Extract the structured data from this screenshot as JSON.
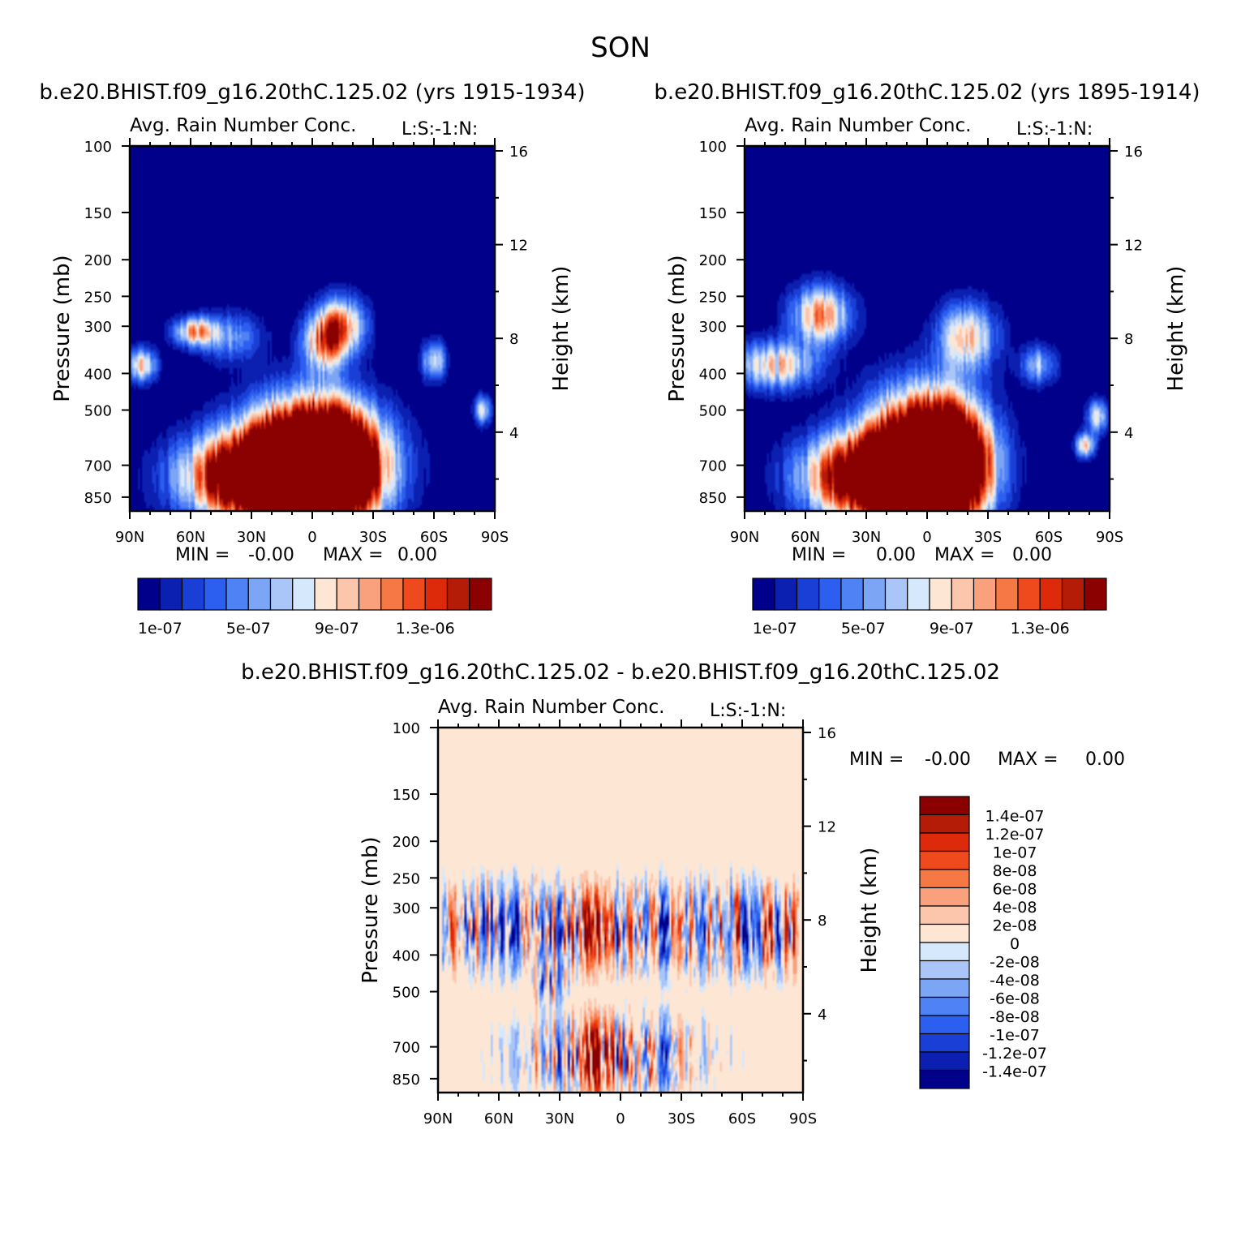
{
  "figure": {
    "title": "SON"
  },
  "panels": [
    {
      "id": "left",
      "case_title": "b.e20.BHIST.f09_g16.20thC.125.02 (yrs 1915-1934)",
      "variable": "Avg. Rain Number Conc.",
      "code": "L:S:-1:N:",
      "ylabel": "Pressure (mb)",
      "ylabel_right": "Height (km)",
      "xticks": [
        "90N",
        "60N",
        "30N",
        "0",
        "30S",
        "60S",
        "90S"
      ],
      "yticks": [
        "100",
        "150",
        "200",
        "250",
        "300",
        "400",
        "500",
        "700",
        "850"
      ],
      "yticks_right": [
        "16",
        "12",
        "8",
        "4"
      ],
      "stats": {
        "min_label": "MIN =",
        "min_value": "-0.00",
        "max_label": "MAX =",
        "max_value": "0.00"
      },
      "colorbar_labels": [
        "1e-07",
        "5e-07",
        "9e-07",
        "1.3e-06"
      ]
    },
    {
      "id": "right",
      "case_title": "b.e20.BHIST.f09_g16.20thC.125.02 (yrs 1895-1914)",
      "variable": "Avg. Rain Number Conc.",
      "code": "L:S:-1:N:",
      "ylabel": "Pressure (mb)",
      "ylabel_right": "Height (km)",
      "xticks": [
        "90N",
        "60N",
        "30N",
        "0",
        "30S",
        "60S",
        "90S"
      ],
      "yticks": [
        "100",
        "150",
        "200",
        "250",
        "300",
        "400",
        "500",
        "700",
        "850"
      ],
      "yticks_right": [
        "16",
        "12",
        "8",
        "4"
      ],
      "stats": {
        "min_label": "MIN =",
        "min_value": "0.00",
        "max_label": "MAX =",
        "max_value": "0.00"
      },
      "colorbar_labels": [
        "1e-07",
        "5e-07",
        "9e-07",
        "1.3e-06"
      ]
    },
    {
      "id": "diff",
      "case_title": "b.e20.BHIST.f09_g16.20thC.125.02 - b.e20.BHIST.f09_g16.20thC.125.02",
      "variable": "Avg. Rain Number Conc.",
      "code": "L:S:-1:N:",
      "ylabel": "Pressure (mb)",
      "ylabel_right": "Height (km)",
      "xticks": [
        "90N",
        "60N",
        "30N",
        "0",
        "30S",
        "60S",
        "90S"
      ],
      "yticks": [
        "100",
        "150",
        "200",
        "250",
        "300",
        "400",
        "500",
        "700",
        "850"
      ],
      "yticks_right": [
        "16",
        "12",
        "8",
        "4"
      ],
      "stats": {
        "min_label": "MIN =",
        "min_value": "-0.00",
        "max_label": "MAX =",
        "max_value": "0.00"
      },
      "colorbar_labels": [
        "1.4e-07",
        "1.2e-07",
        "1e-07",
        "8e-08",
        "6e-08",
        "4e-08",
        "2e-08",
        "0",
        "-2e-08",
        "-4e-08",
        "-6e-08",
        "-8e-08",
        "-1e-07",
        "-1.2e-07",
        "-1.4e-07"
      ]
    }
  ],
  "chart_data": [
    {
      "type": "heatmap",
      "title": "Avg. Rain Number Conc.",
      "xlabel": "",
      "ylabel": "Pressure (mb)",
      "y2label": "Height (km)",
      "xlim": [
        90,
        -90
      ],
      "ylim": [
        100,
        925
      ],
      "y_scale": "log",
      "seq_colors": [
        "#00008b",
        "#0b1fb0",
        "#1a3fd6",
        "#2c5fef",
        "#4f82f5",
        "#7da5f5",
        "#aac6f8",
        "#d6e8fc",
        "#fde6d4",
        "#fcc6ad",
        "#f9a07d",
        "#f67844",
        "#ef4a1d",
        "#dc2a0a",
        "#b51c07",
        "#8b0000"
      ],
      "colorbar_ticks": [
        "1e-07",
        "5e-07",
        "9e-07",
        "1.3e-06"
      ],
      "blobs": [
        {
          "lat": 25,
          "p": 750,
          "wlat": 24,
          "wlog": 0.17,
          "a": 2.6
        },
        {
          "lat": 5,
          "p": 700,
          "wlat": 20,
          "wlog": 0.25,
          "a": 2.8
        },
        {
          "lat": -10,
          "p": 700,
          "wlat": 18,
          "wlog": 0.22,
          "a": 2.4
        },
        {
          "lat": -5,
          "p": 330,
          "wlat": 7,
          "wlog": 0.12,
          "a": 1.1
        },
        {
          "lat": -15,
          "p": 300,
          "wlat": 8,
          "wlog": 0.12,
          "a": 1.1
        },
        {
          "lat": 84,
          "p": 380,
          "wlat": 5,
          "wlog": 0.07,
          "a": 1.0
        },
        {
          "lat": 58,
          "p": 310,
          "wlat": 7,
          "wlog": 0.06,
          "a": 1.1
        },
        {
          "lat": 40,
          "p": 320,
          "wlat": 10,
          "wlog": 0.1,
          "a": 0.6
        },
        {
          "lat": -60,
          "p": 370,
          "wlat": 4,
          "wlog": 0.08,
          "a": 0.9
        },
        {
          "lat": -84,
          "p": 500,
          "wlat": 3,
          "wlog": 0.06,
          "a": 0.8
        }
      ]
    },
    {
      "type": "heatmap",
      "title": "Avg. Rain Number Conc.",
      "xlabel": "",
      "ylabel": "Pressure (mb)",
      "y2label": "Height (km)",
      "xlim": [
        90,
        -90
      ],
      "ylim": [
        100,
        925
      ],
      "y_scale": "log",
      "seq_colors": [
        "#00008b",
        "#0b1fb0",
        "#1a3fd6",
        "#2c5fef",
        "#4f82f5",
        "#7da5f5",
        "#aac6f8",
        "#d6e8fc",
        "#fde6d4",
        "#fcc6ad",
        "#f9a07d",
        "#f67844",
        "#ef4a1d",
        "#dc2a0a",
        "#b51c07",
        "#8b0000"
      ],
      "colorbar_ticks": [
        "1e-07",
        "5e-07",
        "9e-07",
        "1.3e-06"
      ],
      "blobs": [
        {
          "lat": 25,
          "p": 750,
          "wlat": 22,
          "wlog": 0.17,
          "a": 2.6
        },
        {
          "lat": 3,
          "p": 680,
          "wlat": 18,
          "wlog": 0.27,
          "a": 2.8
        },
        {
          "lat": -10,
          "p": 700,
          "wlat": 14,
          "wlog": 0.22,
          "a": 2.3
        },
        {
          "lat": -20,
          "p": 320,
          "wlat": 10,
          "wlog": 0.14,
          "a": 1.0
        },
        {
          "lat": 52,
          "p": 280,
          "wlat": 10,
          "wlog": 0.12,
          "a": 1.2
        },
        {
          "lat": 75,
          "p": 380,
          "wlat": 14,
          "wlog": 0.1,
          "a": 1.0
        },
        {
          "lat": -55,
          "p": 380,
          "wlat": 6,
          "wlog": 0.08,
          "a": 0.7
        },
        {
          "lat": -78,
          "p": 620,
          "wlat": 3,
          "wlog": 0.05,
          "a": 1.2
        },
        {
          "lat": -84,
          "p": 520,
          "wlat": 4,
          "wlog": 0.07,
          "a": 0.8
        }
      ]
    },
    {
      "type": "heatmap",
      "title": "Avg. Rain Number Conc.",
      "xlabel": "",
      "ylabel": "Pressure (mb)",
      "y2label": "Height (km)",
      "xlim": [
        90,
        -90
      ],
      "ylim": [
        100,
        925
      ],
      "y_scale": "log",
      "div_colors": [
        "#00008b",
        "#0b1fb0",
        "#1a3fd6",
        "#2c5fef",
        "#4f82f5",
        "#7da5f5",
        "#aac6f8",
        "#d6e8fc",
        "#fde6d4",
        "#fcc6ad",
        "#f9a07d",
        "#f67844",
        "#ef4a1d",
        "#dc2a0a",
        "#b51c07",
        "#8b0000"
      ],
      "colorbar_ticks": [
        "1.4e-07",
        "1.2e-07",
        "1e-07",
        "8e-08",
        "6e-08",
        "4e-08",
        "2e-08",
        "0",
        "-2e-08",
        "-4e-08",
        "-6e-08",
        "-8e-08",
        "-1e-07",
        "-1.2e-07",
        "-1.4e-07"
      ]
    }
  ]
}
